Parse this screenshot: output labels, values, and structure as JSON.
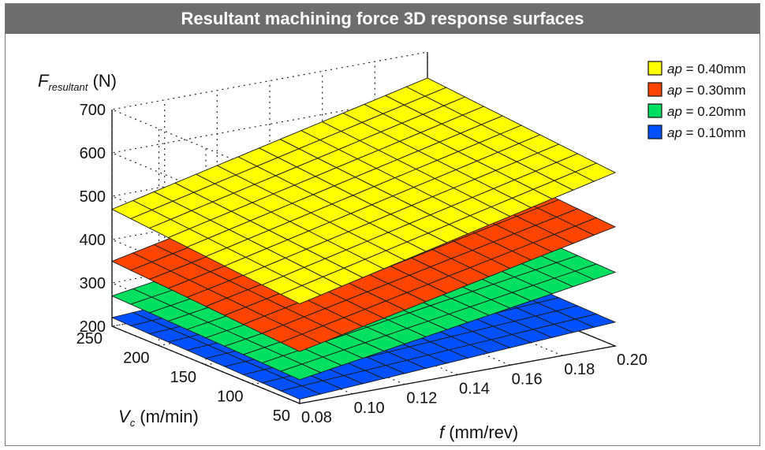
{
  "title": "Resultant machining force 3D response surfaces",
  "chart_data": {
    "type": "surface3d",
    "title": "Resultant machining force 3D response surfaces",
    "zlabel": {
      "symbol": "F",
      "subscript": "resultant",
      "unit": "(N)"
    },
    "ylabel": {
      "symbol": "V",
      "subscript": "c",
      "unit": "(m/min)"
    },
    "xlabel": {
      "symbol": "f",
      "unit": "(mm/rev)"
    },
    "x_range": [
      0.08,
      0.2
    ],
    "y_range": [
      50,
      250
    ],
    "z_range": [
      200,
      700
    ],
    "x_ticks": [
      "0.08",
      "0.10",
      "0.12",
      "0.14",
      "0.16",
      "0.18",
      "0.20"
    ],
    "y_ticks": [
      "50",
      "100",
      "150",
      "200",
      "250"
    ],
    "z_ticks": [
      "200",
      "300",
      "400",
      "500",
      "600",
      "700"
    ],
    "grid": true,
    "legend_position": "top-right",
    "series": [
      {
        "name": "= 0.40mm",
        "param": "ap",
        "color": "#ffff00",
        "corners": {
          "f0.08_v50": 430,
          "f0.20_v50": 600,
          "f0.08_v250": 470,
          "f0.20_v250": 640
        }
      },
      {
        "name": "= 0.30mm",
        "param": "ap",
        "color": "#ff4500",
        "corners": {
          "f0.08_v50": 320,
          "f0.20_v50": 475,
          "f0.08_v250": 350,
          "f0.20_v250": 505
        }
      },
      {
        "name": "= 0.20mm",
        "param": "ap",
        "color": "#00e060",
        "corners": {
          "f0.08_v50": 255,
          "f0.20_v50": 370,
          "f0.08_v250": 270,
          "f0.20_v250": 385
        }
      },
      {
        "name": "= 0.10mm",
        "param": "ap",
        "color": "#0050ff",
        "corners": {
          "f0.08_v50": 210,
          "f0.20_v50": 255,
          "f0.08_v250": 220,
          "f0.20_v250": 265
        }
      }
    ]
  }
}
